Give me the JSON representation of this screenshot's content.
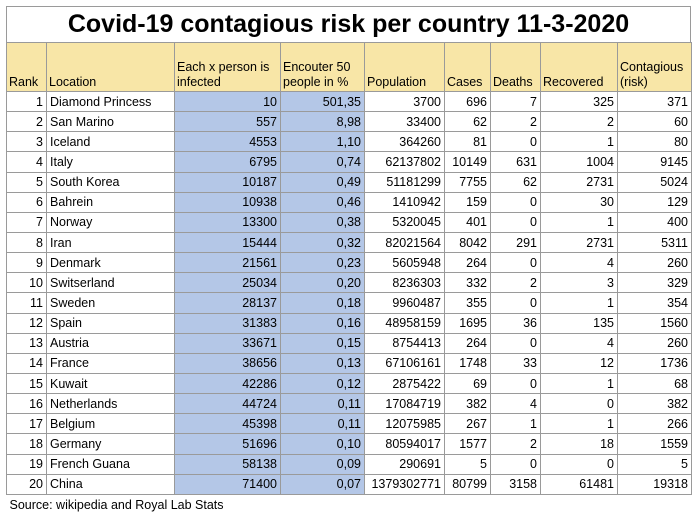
{
  "title": "Covid-19 contagious risk per country 11-3-2020",
  "columns": {
    "rank": "Rank",
    "location": "Location",
    "each_x": "Each x person is infected",
    "encounter": "Encouter 50 people in %",
    "population": "Population",
    "cases": "Cases",
    "deaths": "Deaths",
    "recovered": "Recovered",
    "contagious": "Contagious (risk)"
  },
  "colors": {
    "header_bg": "#f8e6a7",
    "highlight_bg": "#b4c7e7",
    "grid": "#9a9a9a"
  },
  "rows": [
    [
      "1",
      "Diamond Princess",
      "10",
      "501,35",
      "3700",
      "696",
      "7",
      "325",
      "371"
    ],
    [
      "2",
      "San Marino",
      "557",
      "8,98",
      "33400",
      "62",
      "2",
      "2",
      "60"
    ],
    [
      "3",
      "Iceland",
      "4553",
      "1,10",
      "364260",
      "81",
      "0",
      "1",
      "80"
    ],
    [
      "4",
      "Italy",
      "6795",
      "0,74",
      "62137802",
      "10149",
      "631",
      "1004",
      "9145"
    ],
    [
      "5",
      "South Korea",
      "10187",
      "0,49",
      "51181299",
      "7755",
      "62",
      "2731",
      "5024"
    ],
    [
      "6",
      "Bahrein",
      "10938",
      "0,46",
      "1410942",
      "159",
      "0",
      "30",
      "129"
    ],
    [
      "7",
      "Norway",
      "13300",
      "0,38",
      "5320045",
      "401",
      "0",
      "1",
      "400"
    ],
    [
      "8",
      "Iran",
      "15444",
      "0,32",
      "82021564",
      "8042",
      "291",
      "2731",
      "5311"
    ],
    [
      "9",
      "Denmark",
      "21561",
      "0,23",
      "5605948",
      "264",
      "0",
      "4",
      "260"
    ],
    [
      "10",
      "Switserland",
      "25034",
      "0,20",
      "8236303",
      "332",
      "2",
      "3",
      "329"
    ],
    [
      "11",
      "Sweden",
      "28137",
      "0,18",
      "9960487",
      "355",
      "0",
      "1",
      "354"
    ],
    [
      "12",
      "Spain",
      "31383",
      "0,16",
      "48958159",
      "1695",
      "36",
      "135",
      "1560"
    ],
    [
      "13",
      "Austria",
      "33671",
      "0,15",
      "8754413",
      "264",
      "0",
      "4",
      "260"
    ],
    [
      "14",
      "France",
      "38656",
      "0,13",
      "67106161",
      "1748",
      "33",
      "12",
      "1736"
    ],
    [
      "15",
      "Kuwait",
      "42286",
      "0,12",
      "2875422",
      "69",
      "0",
      "1",
      "68"
    ],
    [
      "16",
      "Netherlands",
      "44724",
      "0,11",
      "17084719",
      "382",
      "4",
      "0",
      "382"
    ],
    [
      "17",
      "Belgium",
      "45398",
      "0,11",
      "12075985",
      "267",
      "1",
      "1",
      "266"
    ],
    [
      "18",
      "Germany",
      "51696",
      "0,10",
      "80594017",
      "1577",
      "2",
      "18",
      "1559"
    ],
    [
      "19",
      "French Guana",
      "58138",
      "0,09",
      "290691",
      "5",
      "0",
      "0",
      "5"
    ],
    [
      "20",
      "China",
      "71400",
      "0,07",
      "1379302771",
      "80799",
      "3158",
      "61481",
      "19318"
    ]
  ],
  "source": "Source: wikipedia and Royal Lab Stats"
}
